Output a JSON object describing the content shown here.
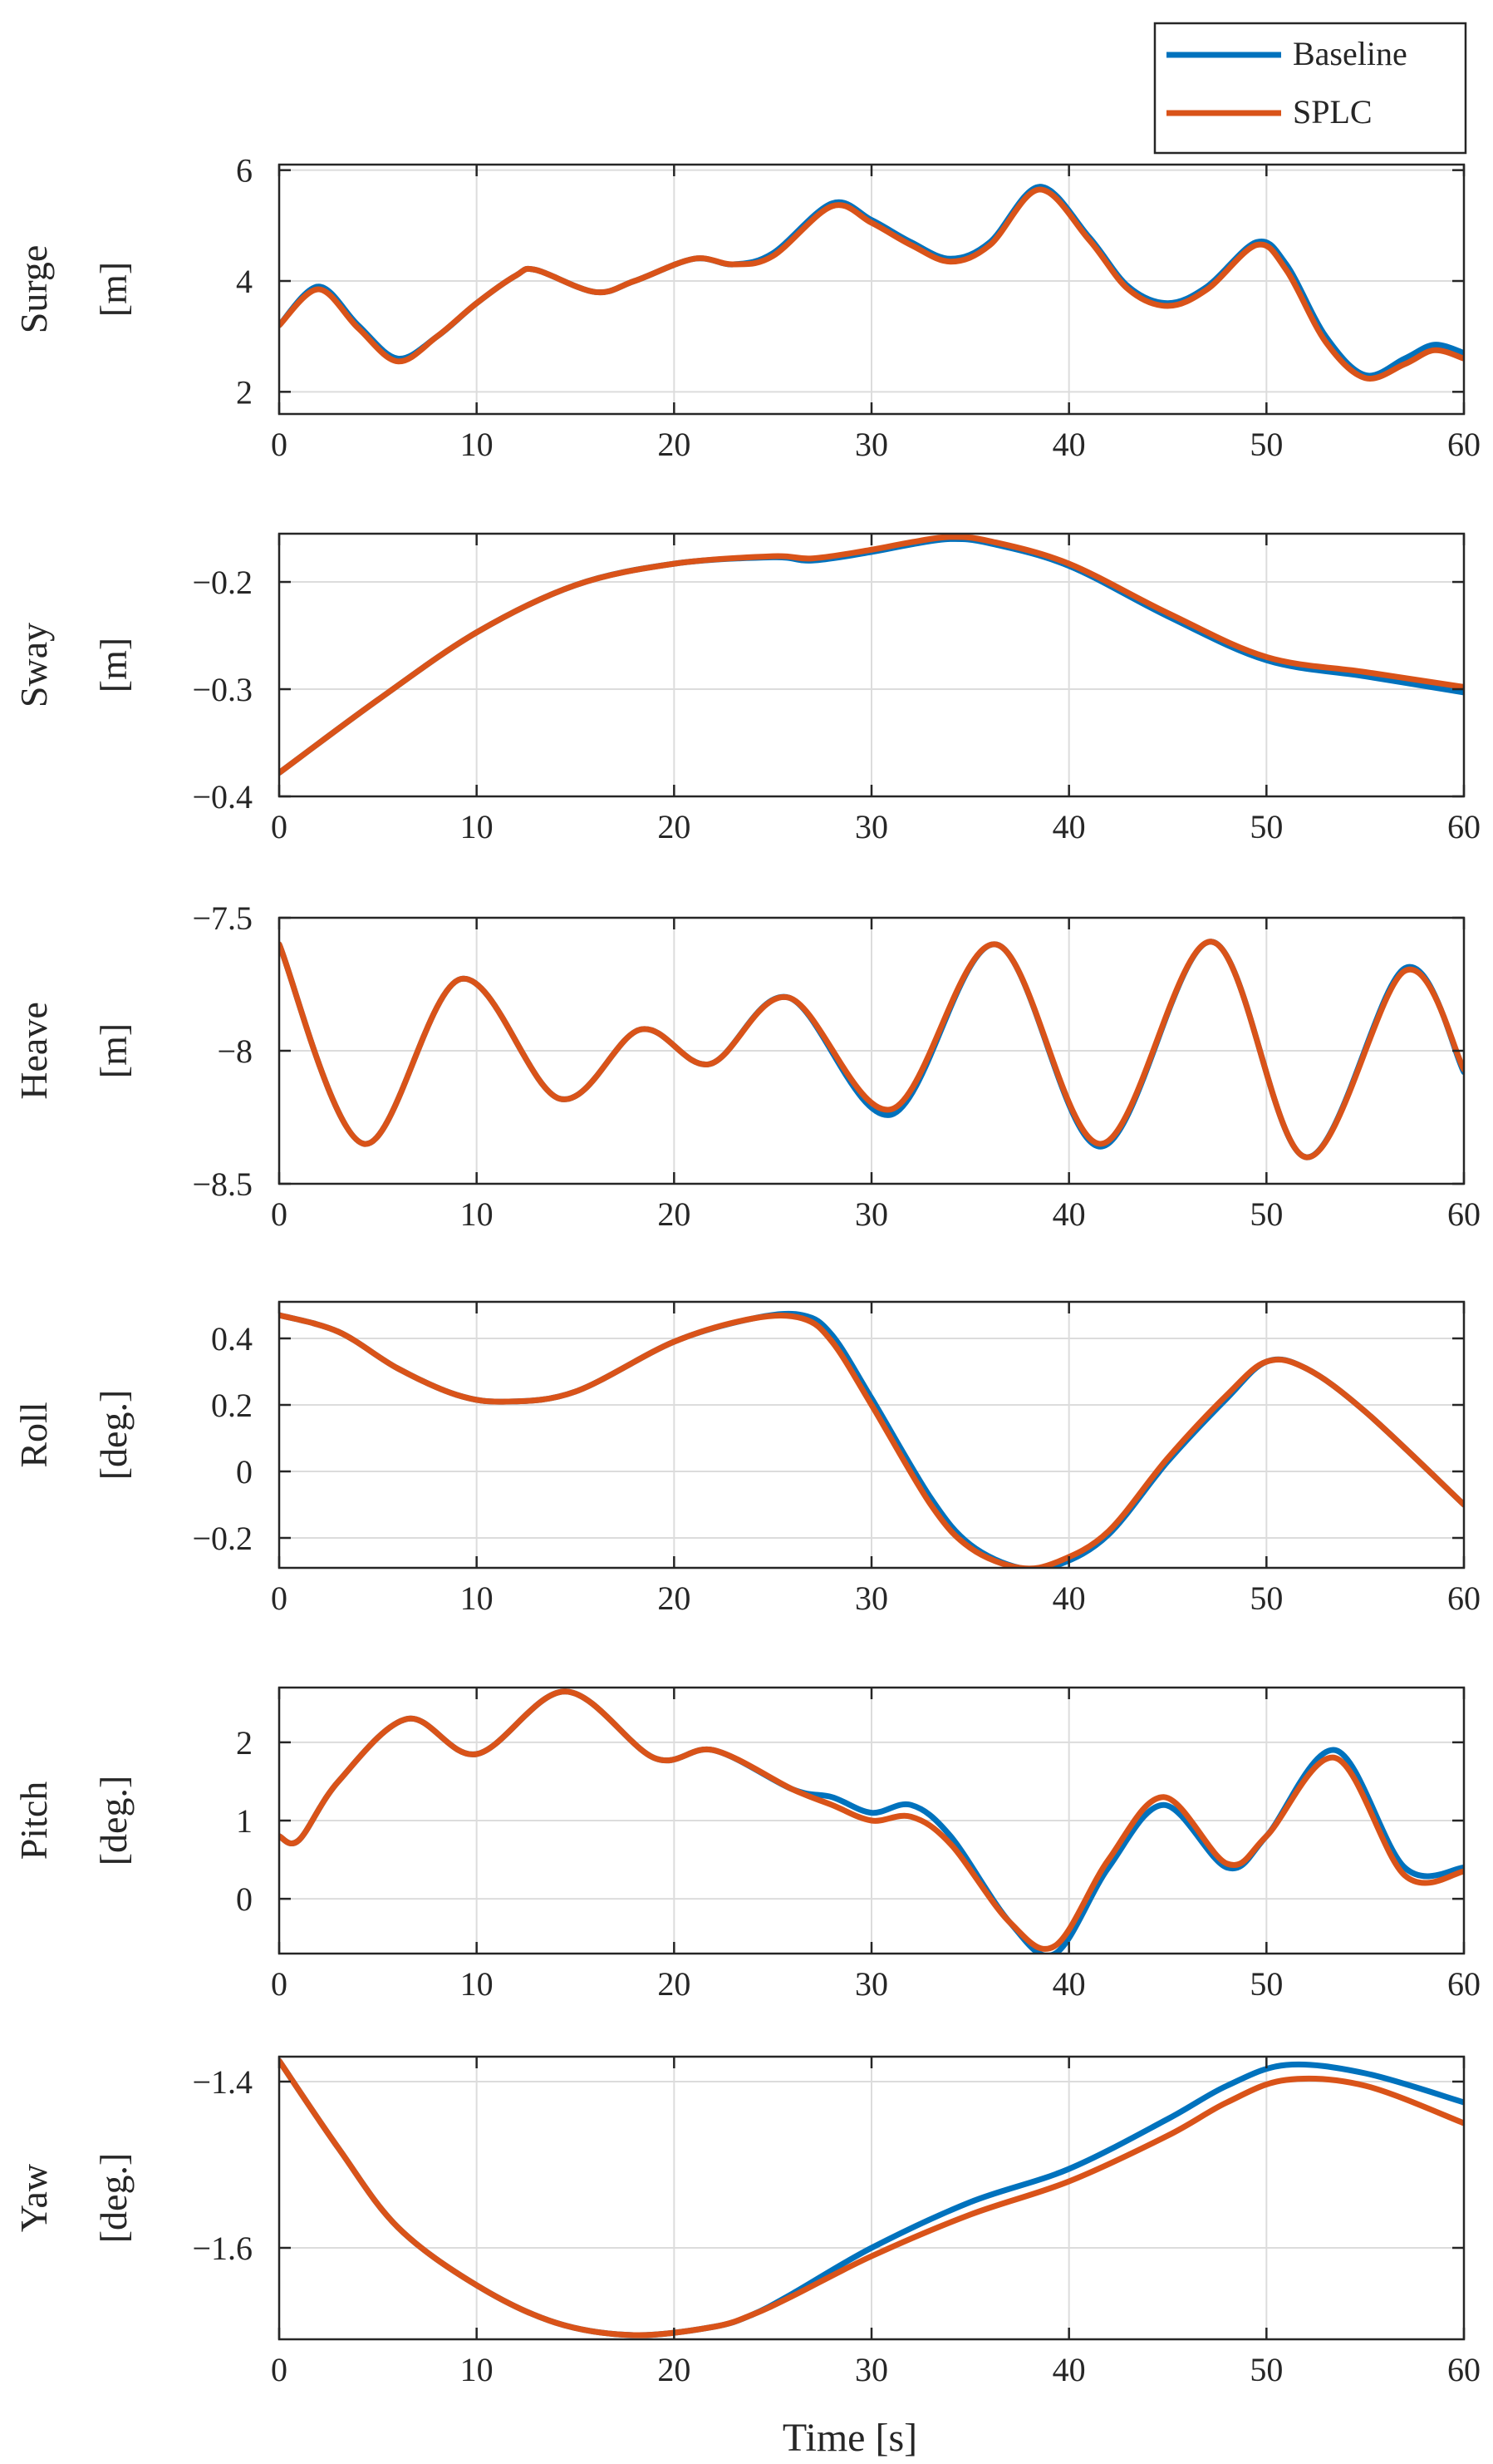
{
  "figure": {
    "xlabel": "Time [s]"
  },
  "legend": {
    "placement": "top-right",
    "entries": [
      {
        "name": "Baseline",
        "color": "#0072BD"
      },
      {
        "name": "SPLC",
        "color": "#D95319"
      }
    ]
  },
  "chart_data": [
    {
      "type": "line",
      "ylabel_name": "Surge",
      "ylabel_unit": "[m]",
      "xlim": [
        0,
        60
      ],
      "ylim": [
        1.6,
        6.1
      ],
      "xticks": [
        0,
        10,
        20,
        30,
        40,
        50,
        60
      ],
      "yticks": [
        2,
        4,
        6
      ],
      "ytick_labels": [
        "2",
        "4",
        "6"
      ],
      "grid": true,
      "series": [
        {
          "name": "Baseline",
          "color": "#0072BD",
          "x": [
            0,
            2,
            4,
            6,
            8,
            10,
            12,
            13,
            16,
            18,
            21,
            23,
            25,
            28,
            30,
            32,
            34,
            36,
            38.5,
            41,
            43,
            45,
            47,
            49.5,
            51,
            53,
            55,
            57,
            58.5,
            60
          ],
          "y": [
            3.2,
            3.9,
            3.2,
            2.6,
            3.0,
            3.6,
            4.1,
            4.2,
            3.8,
            4.0,
            4.4,
            4.3,
            4.5,
            5.4,
            5.1,
            4.7,
            4.4,
            4.7,
            5.7,
            4.8,
            3.9,
            3.6,
            3.9,
            4.7,
            4.3,
            3.0,
            2.3,
            2.6,
            2.85,
            2.7
          ]
        },
        {
          "name": "SPLC",
          "color": "#D95319",
          "x": [
            0,
            2,
            4,
            6,
            8,
            10,
            12,
            13,
            16,
            18,
            21,
            23,
            25,
            28,
            30,
            32,
            34,
            36,
            38.5,
            41,
            43,
            45,
            47,
            49.5,
            51,
            53,
            55,
            57,
            58.5,
            60
          ],
          "y": [
            3.2,
            3.85,
            3.15,
            2.55,
            3.0,
            3.6,
            4.1,
            4.2,
            3.8,
            4.0,
            4.4,
            4.3,
            4.45,
            5.35,
            5.05,
            4.65,
            4.35,
            4.65,
            5.65,
            4.75,
            3.85,
            3.55,
            3.85,
            4.65,
            4.2,
            2.9,
            2.25,
            2.5,
            2.75,
            2.6
          ]
        }
      ]
    },
    {
      "type": "line",
      "ylabel_name": "Sway",
      "ylabel_unit": "[m]",
      "xlim": [
        0,
        60
      ],
      "ylim": [
        -0.4,
        -0.155
      ],
      "xticks": [
        0,
        10,
        20,
        30,
        40,
        50,
        60
      ],
      "yticks": [
        -0.4,
        -0.3,
        -0.2
      ],
      "ytick_labels": [
        "−0.4",
        "−0.3",
        "−0.2"
      ],
      "grid": true,
      "series": [
        {
          "name": "Baseline",
          "color": "#0072BD",
          "x": [
            0,
            5,
            10,
            15,
            20,
            25,
            27,
            30,
            32,
            34,
            36,
            40,
            45,
            50,
            55,
            60
          ],
          "y": [
            -0.378,
            -0.31,
            -0.247,
            -0.203,
            -0.183,
            -0.177,
            -0.18,
            -0.172,
            -0.165,
            -0.16,
            -0.164,
            -0.185,
            -0.232,
            -0.273,
            -0.288,
            -0.303
          ]
        },
        {
          "name": "SPLC",
          "color": "#D95319",
          "x": [
            0,
            5,
            10,
            15,
            20,
            25,
            27,
            30,
            32,
            34,
            36,
            40,
            45,
            50,
            55,
            60
          ],
          "y": [
            -0.378,
            -0.31,
            -0.247,
            -0.203,
            -0.183,
            -0.176,
            -0.178,
            -0.17,
            -0.163,
            -0.158,
            -0.162,
            -0.183,
            -0.229,
            -0.27,
            -0.284,
            -0.298
          ]
        }
      ]
    },
    {
      "type": "line",
      "ylabel_name": "Heave",
      "ylabel_unit": "[m]",
      "xlim": [
        0,
        60
      ],
      "ylim": [
        -8.5,
        -7.5
      ],
      "xticks": [
        0,
        10,
        20,
        30,
        40,
        50,
        60
      ],
      "yticks": [
        -8.5,
        -8,
        -7.5
      ],
      "ytick_labels": [
        "−8.5",
        "−8",
        "−7.5"
      ],
      "grid": true,
      "series": [
        {
          "name": "Baseline",
          "color": "#0072BD",
          "x": [
            0,
            4.3,
            9.2,
            14.2,
            18.3,
            21.8,
            25.8,
            31,
            36.3,
            41.6,
            47.2,
            52,
            57,
            60
          ],
          "y": [
            -7.6,
            -8.35,
            -7.73,
            -8.18,
            -7.92,
            -8.05,
            -7.8,
            -8.24,
            -7.6,
            -8.36,
            -7.59,
            -8.4,
            -7.69,
            -8.08
          ]
        },
        {
          "name": "SPLC",
          "color": "#D95319",
          "x": [
            0,
            4.3,
            9.2,
            14.2,
            18.3,
            21.8,
            25.8,
            31,
            36.3,
            41.6,
            47.2,
            52,
            57,
            60
          ],
          "y": [
            -7.6,
            -8.35,
            -7.73,
            -8.18,
            -7.92,
            -8.05,
            -7.8,
            -8.22,
            -7.6,
            -8.35,
            -7.59,
            -8.4,
            -7.7,
            -8.07
          ]
        }
      ]
    },
    {
      "type": "line",
      "ylabel_name": "Roll",
      "ylabel_unit": "[deg.]",
      "xlim": [
        0,
        60
      ],
      "ylim": [
        -0.29,
        0.51
      ],
      "xticks": [
        0,
        10,
        20,
        30,
        40,
        50,
        60
      ],
      "yticks": [
        -0.2,
        0,
        0.2,
        0.4
      ],
      "ytick_labels": [
        "−0.2",
        "0",
        "0.2",
        "0.4"
      ],
      "grid": true,
      "series": [
        {
          "name": "Baseline",
          "color": "#0072BD",
          "x": [
            0,
            3,
            6,
            9,
            11.5,
            15,
            20,
            24,
            26.5,
            28,
            30,
            33,
            35,
            37.5,
            39.5,
            42,
            45,
            48,
            50,
            52,
            55,
            60
          ],
          "y": [
            0.47,
            0.42,
            0.31,
            0.23,
            0.21,
            0.24,
            0.39,
            0.46,
            0.47,
            0.41,
            0.22,
            -0.08,
            -0.22,
            -0.29,
            -0.28,
            -0.19,
            0.03,
            0.22,
            0.33,
            0.31,
            0.18,
            -0.1
          ]
        },
        {
          "name": "SPLC",
          "color": "#D95319",
          "x": [
            0,
            3,
            6,
            9,
            11.5,
            15,
            20,
            24,
            26.5,
            28,
            30,
            33,
            35,
            37.5,
            39.5,
            42,
            45,
            48,
            50,
            52,
            55,
            60
          ],
          "y": [
            0.47,
            0.42,
            0.31,
            0.23,
            0.21,
            0.24,
            0.39,
            0.46,
            0.46,
            0.39,
            0.2,
            -0.1,
            -0.23,
            -0.29,
            -0.27,
            -0.18,
            0.04,
            0.23,
            0.33,
            0.31,
            0.18,
            -0.1
          ]
        }
      ]
    },
    {
      "type": "line",
      "ylabel_name": "Pitch",
      "ylabel_unit": "[deg.]",
      "xlim": [
        0,
        60
      ],
      "ylim": [
        -0.7,
        2.7
      ],
      "xticks": [
        0,
        10,
        20,
        30,
        40,
        50,
        60
      ],
      "yticks": [
        0,
        1,
        2
      ],
      "ytick_labels": [
        "0",
        "1",
        "2"
      ],
      "grid": true,
      "series": [
        {
          "name": "Baseline",
          "color": "#0072BD",
          "x": [
            0,
            1,
            3,
            6.5,
            10,
            14.5,
            19,
            22,
            26,
            28,
            30,
            32,
            34,
            37,
            39.3,
            42,
            44.8,
            48,
            50,
            53.5,
            57,
            60
          ],
          "y": [
            0.8,
            0.75,
            1.5,
            2.3,
            1.85,
            2.65,
            1.8,
            1.9,
            1.4,
            1.3,
            1.1,
            1.2,
            0.8,
            -0.3,
            -0.7,
            0.4,
            1.2,
            0.4,
            0.8,
            1.9,
            0.4,
            0.4
          ]
        },
        {
          "name": "SPLC",
          "color": "#D95319",
          "x": [
            0,
            1,
            3,
            6.5,
            10,
            14.5,
            19,
            22,
            26,
            28,
            30,
            32,
            34,
            37,
            39.3,
            42,
            44.8,
            48,
            50,
            53.5,
            57,
            60
          ],
          "y": [
            0.8,
            0.75,
            1.5,
            2.3,
            1.85,
            2.65,
            1.8,
            1.9,
            1.4,
            1.2,
            1.0,
            1.05,
            0.7,
            -0.3,
            -0.6,
            0.5,
            1.3,
            0.45,
            0.8,
            1.8,
            0.3,
            0.35
          ]
        }
      ]
    },
    {
      "type": "line",
      "ylabel_name": "Yaw",
      "ylabel_unit": "[deg.]",
      "xlim": [
        0,
        60
      ],
      "ylim": [
        -1.71,
        -1.37
      ],
      "xticks": [
        0,
        10,
        20,
        30,
        40,
        50,
        60
      ],
      "yticks": [
        -1.6,
        -1.4
      ],
      "ytick_labels": [
        "−1.6",
        "−1.4"
      ],
      "grid": true,
      "series": [
        {
          "name": "Baseline",
          "color": "#0072BD",
          "x": [
            0,
            3,
            6,
            10,
            14,
            18,
            22,
            24,
            26,
            30,
            35,
            40,
            45,
            48,
            51,
            55,
            60
          ],
          "y": [
            -1.375,
            -1.48,
            -1.575,
            -1.645,
            -1.69,
            -1.705,
            -1.695,
            -1.68,
            -1.655,
            -1.6,
            -1.545,
            -1.505,
            -1.445,
            -1.405,
            -1.38,
            -1.39,
            -1.425
          ]
        },
        {
          "name": "SPLC",
          "color": "#D95319",
          "x": [
            0,
            3,
            6,
            10,
            14,
            18,
            22,
            24,
            26,
            30,
            35,
            40,
            45,
            48,
            51,
            55,
            60
          ],
          "y": [
            -1.375,
            -1.48,
            -1.575,
            -1.645,
            -1.69,
            -1.705,
            -1.695,
            -1.68,
            -1.658,
            -1.61,
            -1.56,
            -1.52,
            -1.465,
            -1.425,
            -1.398,
            -1.405,
            -1.45
          ]
        }
      ]
    }
  ]
}
